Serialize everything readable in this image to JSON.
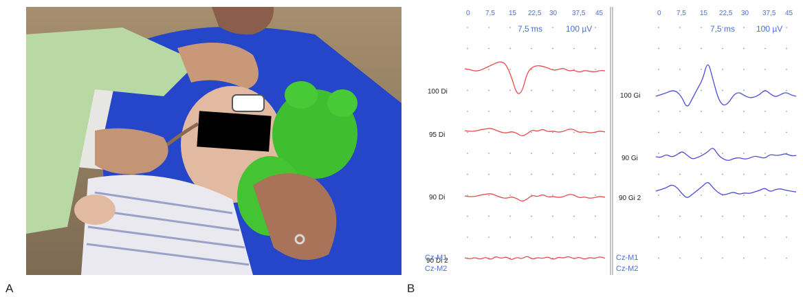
{
  "panel_a": {
    "letter": "A"
  },
  "panel_b": {
    "letter": "B"
  },
  "colors": {
    "left_trace": "#e84a4a",
    "right_trace": "#4b4bd6",
    "axis_label": "#4a6fd8",
    "grid_dot": "#9a9a9a",
    "divider": "#8a8a8a"
  },
  "left_column": {
    "time_ticks": [
      "0",
      "7,5",
      "15",
      "22,5",
      "30",
      "37,5",
      "45"
    ],
    "scale_time": "7,5 ms",
    "scale_amp": "100 µV",
    "traces": [
      {
        "label": "100 Di",
        "y": [
          0,
          -2,
          -6,
          -4,
          2,
          8,
          14,
          18,
          10,
          -20,
          -62,
          -58,
          -10,
          4,
          8,
          6,
          2,
          -4,
          -2,
          2,
          -6,
          -3,
          -9,
          -4,
          -6,
          -8,
          -4,
          -5
        ]
      },
      {
        "label": "95 Di",
        "y": [
          0,
          -2,
          -1,
          2,
          4,
          6,
          1,
          -4,
          -6,
          -2,
          -6,
          -14,
          -8,
          2,
          -2,
          4,
          -3,
          -1,
          -4,
          -2,
          4,
          3,
          -5,
          -2,
          -6,
          -4,
          -1,
          -3
        ]
      },
      {
        "label": "90 Di",
        "y": [
          0,
          -2,
          -1,
          2,
          4,
          6,
          1,
          -4,
          -6,
          -2,
          -6,
          -14,
          -8,
          2,
          -2,
          4,
          -3,
          -1,
          -4,
          -2,
          4,
          3,
          -5,
          -2,
          -6,
          -4,
          -1,
          -3
        ]
      },
      {
        "label": "90 Di 2",
        "y": [
          0,
          -3,
          1,
          -4,
          2,
          -5,
          4,
          -2,
          3,
          -6,
          2,
          -3,
          5,
          -4,
          1,
          -2,
          3,
          -5,
          2,
          -1,
          4,
          -3,
          2,
          -4,
          1,
          -2,
          3,
          -1
        ]
      }
    ],
    "montage": [
      "Cz-M1",
      "Cz-M2"
    ]
  },
  "right_column": {
    "time_ticks": [
      "0",
      "7,5",
      "15",
      "22,5",
      "30",
      "37,5",
      "45"
    ],
    "scale_time": "7,5 ms",
    "scale_amp": "100 µV",
    "traces": [
      {
        "label": "100 Gi",
        "y": [
          0,
          4,
          8,
          14,
          12,
          -2,
          -30,
          -6,
          18,
          40,
          88,
          40,
          -6,
          -24,
          -16,
          4,
          10,
          2,
          -4,
          -2,
          4,
          16,
          6,
          -2,
          4,
          10,
          3,
          0
        ]
      },
      {
        "label": "90 Gi",
        "y": [
          0,
          -2,
          6,
          -1,
          4,
          14,
          4,
          -6,
          -2,
          4,
          12,
          24,
          4,
          -6,
          -10,
          -4,
          -2,
          -6,
          -4,
          2,
          -1,
          -4,
          6,
          3,
          4,
          8,
          2,
          3
        ]
      },
      {
        "label": "90 Gi 2",
        "y": [
          0,
          4,
          8,
          16,
          10,
          -6,
          -18,
          -8,
          2,
          12,
          24,
          8,
          -4,
          -10,
          -6,
          -2,
          -8,
          -4,
          -6,
          -2,
          2,
          8,
          -2,
          4,
          6,
          2,
          0,
          -2
        ]
      }
    ],
    "montage": [
      "Cz-M1",
      "Cz-M2"
    ]
  }
}
